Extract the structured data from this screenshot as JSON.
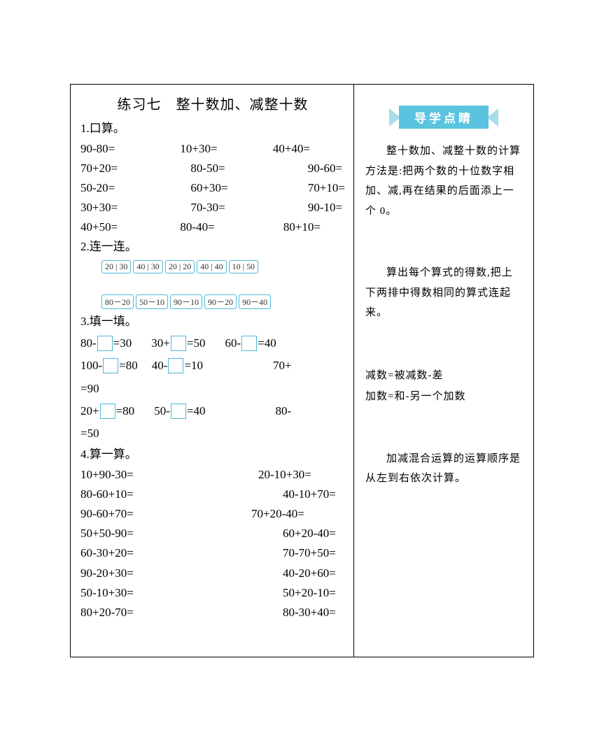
{
  "title": "练习七　整十数加、减整十数",
  "s1_label": "1.口算。",
  "q1": [
    [
      "90-80=",
      "10+30=",
      "40+40="
    ],
    [
      "70+20=",
      "80-50=",
      "90-60="
    ],
    [
      "50-20=",
      "60+30=",
      "70+10="
    ],
    [
      "30+30=",
      "70-30=",
      "90-10="
    ],
    [
      "40+50=",
      "80-40=",
      "80+10="
    ]
  ],
  "s2_label": "2.连一连。",
  "top_chips": [
    "20 | 30",
    "40 | 30",
    "20 | 20",
    "40 | 40",
    "10 | 50"
  ],
  "bot_chips": [
    "80－20",
    "50－10",
    "90－10",
    "90－20",
    "90－40"
  ],
  "s3_label": "3.填一填。",
  "f_r1a_pre": "80-",
  "f_r1a_post": "=30",
  "f_r1b_pre": "30+",
  "f_r1b_post": "=50",
  "f_r1c_pre": "60-",
  "f_r1c_post": "=40",
  "f_r2a_pre": "100-",
  "f_r2a_post": "=80",
  "f_r2b_pre": "40-",
  "f_r2b_post": "=10",
  "f_r2c": "70+",
  "f_r2d": "=90",
  "f_r3a_pre": "20+",
  "f_r3a_post": "=80",
  "f_r3b_pre": "50-",
  "f_r3b_post": "=40",
  "f_r3c": "80-",
  "f_r3d": "=50",
  "s4_label": "4.算一算。",
  "q4": [
    [
      "10+90-30=",
      "20-10+30="
    ],
    [
      "80-60+10=",
      "40-10+70="
    ],
    [
      "90-60+70=",
      "70+20-40="
    ],
    [
      "50+50-90=",
      "60+20-40="
    ],
    [
      "60-30+20=",
      "70-70+50="
    ],
    [
      "90-20+30=",
      "40-20+60="
    ],
    [
      "50-10+30=",
      "50+20-10="
    ],
    [
      "80+20-70=",
      "80-30+40="
    ]
  ],
  "side_title": "导学点睛",
  "side_p1": "整十数加、减整十数的计算方法是:把两个数的十位数字相加、减,再在结果的后面添上一个 0。",
  "side_p2": "算出每个算式的得数,把上下两排中得数相同的算式连起来。",
  "side_p3a": "减数=被减数-差",
  "side_p3b": "加数=和-另一个加数",
  "side_p4": "加减混合运算的运算顺序是从左到右依次计算。",
  "colors": {
    "accent": "#5ac3df",
    "box": "#4db8d8"
  }
}
